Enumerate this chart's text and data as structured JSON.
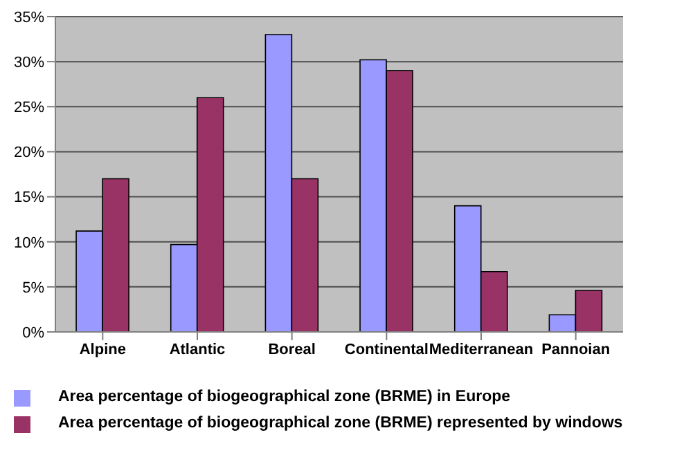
{
  "chart_data": {
    "type": "bar",
    "categories": [
      "Alpine",
      "Atlantic",
      "Boreal",
      "Continental",
      "Mediterranean",
      "Pannoian"
    ],
    "series": [
      {
        "name": "Area percentage of biogeographical zone (BRME) in Europe",
        "color": "#9999ff",
        "values": [
          11.2,
          9.7,
          33,
          30.2,
          14,
          1.9
        ]
      },
      {
        "name": "Area percentage of biogeographical zone (BRME) represented by windows",
        "color": "#993366",
        "values": [
          17,
          26,
          17,
          29,
          6.7,
          4.6
        ]
      }
    ],
    "ylim": [
      0,
      35
    ],
    "yticks": [
      {
        "value": 0,
        "label": "0%"
      },
      {
        "value": 5,
        "label": "5%"
      },
      {
        "value": 10,
        "label": "10%"
      },
      {
        "value": 15,
        "label": "15%"
      },
      {
        "value": 20,
        "label": "20%"
      },
      {
        "value": 25,
        "label": "25%"
      },
      {
        "value": 30,
        "label": "30%"
      },
      {
        "value": 35,
        "label": "35%"
      }
    ],
    "grid": "y",
    "legend": "bottom"
  }
}
